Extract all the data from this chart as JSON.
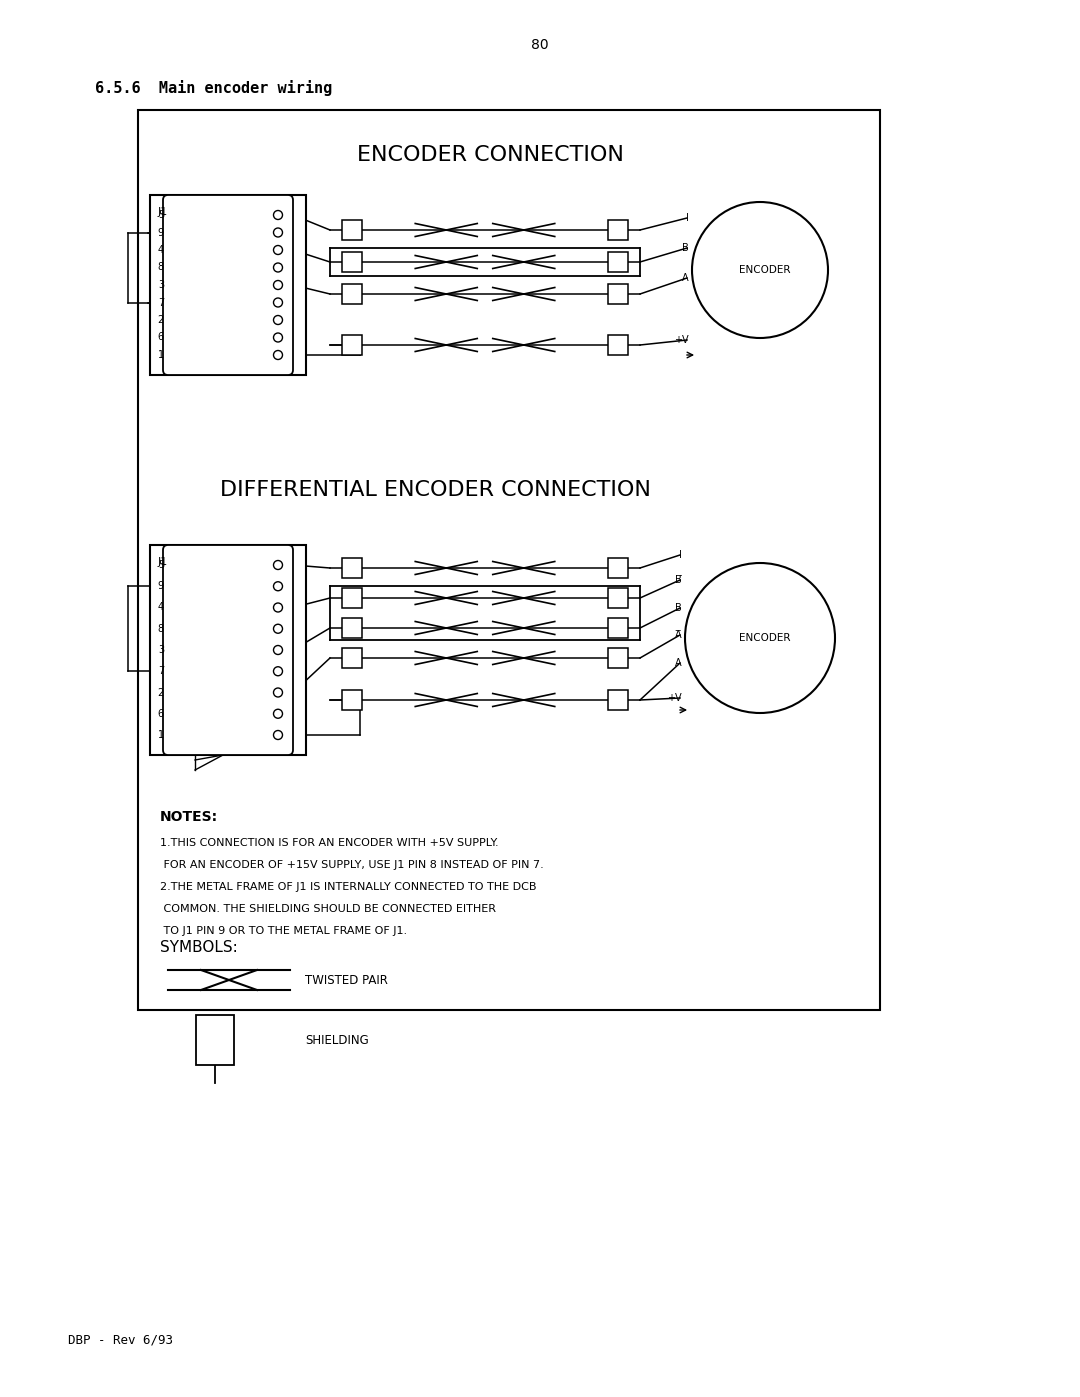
{
  "page_number": "80",
  "section_title": "6.5.6  Main encoder wiring",
  "diagram_title1": "ENCODER CONNECTION",
  "diagram_title2": "DIFFERENTIAL ENCODER CONNECTION",
  "notes_title": "NOTES:",
  "note1_line1": "1.THIS CONNECTION IS FOR AN ENCODER WITH +5V SUPPLY.",
  "note1_line2": " FOR AN ENCODER OF +15V SUPPLY, USE J1 PIN 8 INSTEAD OF PIN 7.",
  "note2_line1": "2.THE METAL FRAME OF J1 IS INTERNALLY CONNECTED TO THE DCB",
  "note2_line2": " COMMON. THE SHIELDING SHOULD BE CONNECTED EITHER",
  "note2_line3": " TO J1 PIN 9 OR TO THE METAL FRAME OF J1.",
  "symbols_title": "SYMBOLS:",
  "symbol1_label": "TWISTED PAIR",
  "symbol2_label": "SHIELDING",
  "footer": "DBP - Rev 6/93",
  "bg_color": "#ffffff",
  "line_color": "#000000"
}
